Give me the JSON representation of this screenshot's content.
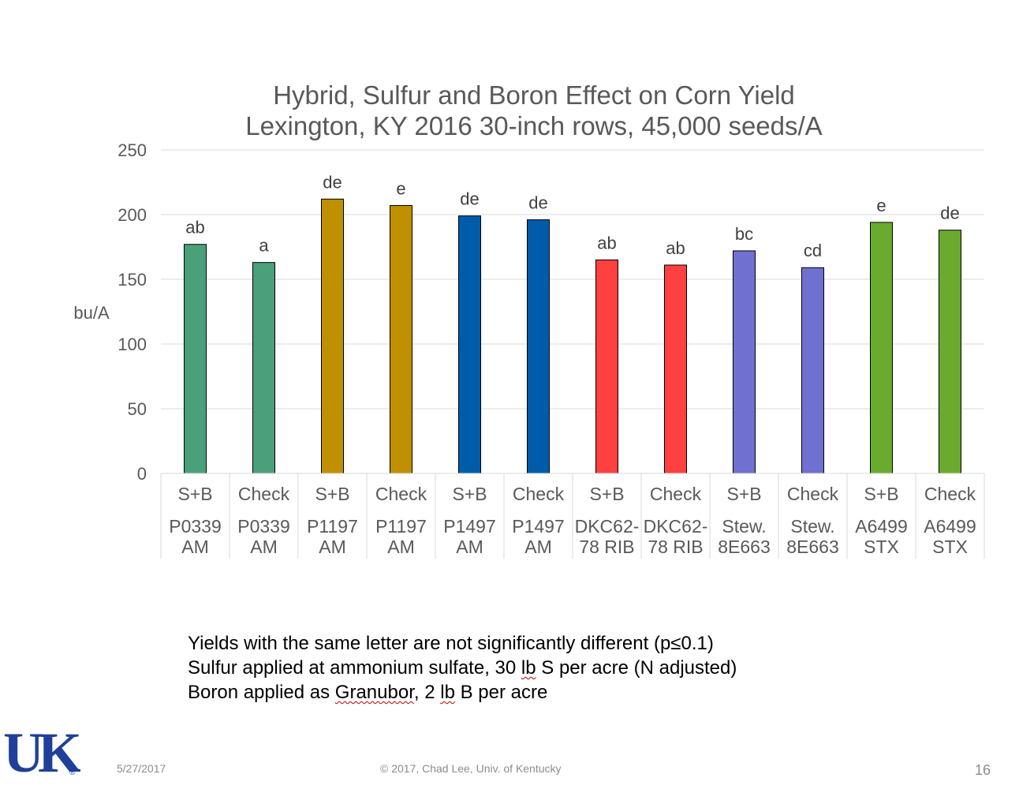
{
  "chart_data": {
    "type": "bar",
    "title": [
      "Hybrid, Sulfur and Boron Effect on Corn Yield",
      "Lexington, KY 2016 30-inch rows, 45,000 seeds/A"
    ],
    "ylabel": "bu/A",
    "xlabel": "",
    "ylim": [
      0,
      250
    ],
    "yticks": [
      0,
      50,
      100,
      150,
      200,
      250
    ],
    "grid": true,
    "legend": false,
    "categories": [
      {
        "treatment": "S+B",
        "hybrid": [
          "P0339",
          "AM"
        ]
      },
      {
        "treatment": "Check",
        "hybrid": [
          "P0339",
          "AM"
        ]
      },
      {
        "treatment": "S+B",
        "hybrid": [
          "P1197",
          "AM"
        ]
      },
      {
        "treatment": "Check",
        "hybrid": [
          "P1197",
          "AM"
        ]
      },
      {
        "treatment": "S+B",
        "hybrid": [
          "P1497",
          "AM"
        ]
      },
      {
        "treatment": "Check",
        "hybrid": [
          "P1497",
          "AM"
        ]
      },
      {
        "treatment": "S+B",
        "hybrid": [
          "DKC62-",
          "78 RIB"
        ]
      },
      {
        "treatment": "Check",
        "hybrid": [
          "DKC62-",
          "78 RIB"
        ]
      },
      {
        "treatment": "S+B",
        "hybrid": [
          "Stew.",
          "8E663"
        ]
      },
      {
        "treatment": "Check",
        "hybrid": [
          "Stew.",
          "8E663"
        ]
      },
      {
        "treatment": "S+B",
        "hybrid": [
          "A6499",
          "STX"
        ]
      },
      {
        "treatment": "Check",
        "hybrid": [
          "A6499",
          "STX"
        ]
      }
    ],
    "values": [
      177,
      163,
      212,
      207,
      199,
      196,
      165,
      161,
      172,
      159,
      194,
      188
    ],
    "data_labels": [
      "ab",
      "a",
      "de",
      "e",
      "de",
      "de",
      "ab",
      "ab",
      "bc",
      "cd",
      "e",
      "de"
    ],
    "colors": [
      "#4aa07a",
      "#4aa07a",
      "#bf9000",
      "#bf9000",
      "#005bab",
      "#005bab",
      "#ff4040",
      "#ff4040",
      "#7070d0",
      "#7070d0",
      "#6aaa2f",
      "#6aaa2f"
    ]
  },
  "notes": {
    "line1": "Yields with the same letter are not significantly different (p≤0.1)",
    "line2_a": "Sulfur applied at ammonium sulfate, 30 ",
    "line2_b": "lb",
    "line2_c": " S per acre (N adjusted)",
    "line3_a": "Boron applied as ",
    "line3_b": "Granubor",
    "line3_c": ", 2 ",
    "line3_d": "lb",
    "line3_e": " B per acre"
  },
  "footer": {
    "date": "5/27/2017",
    "copyright": "© 2017, Chad Lee, Univ. of Kentucky",
    "slide_number": "16"
  },
  "logo": {
    "text": "UK",
    "mark": "®",
    "color": "#1f3f99"
  }
}
